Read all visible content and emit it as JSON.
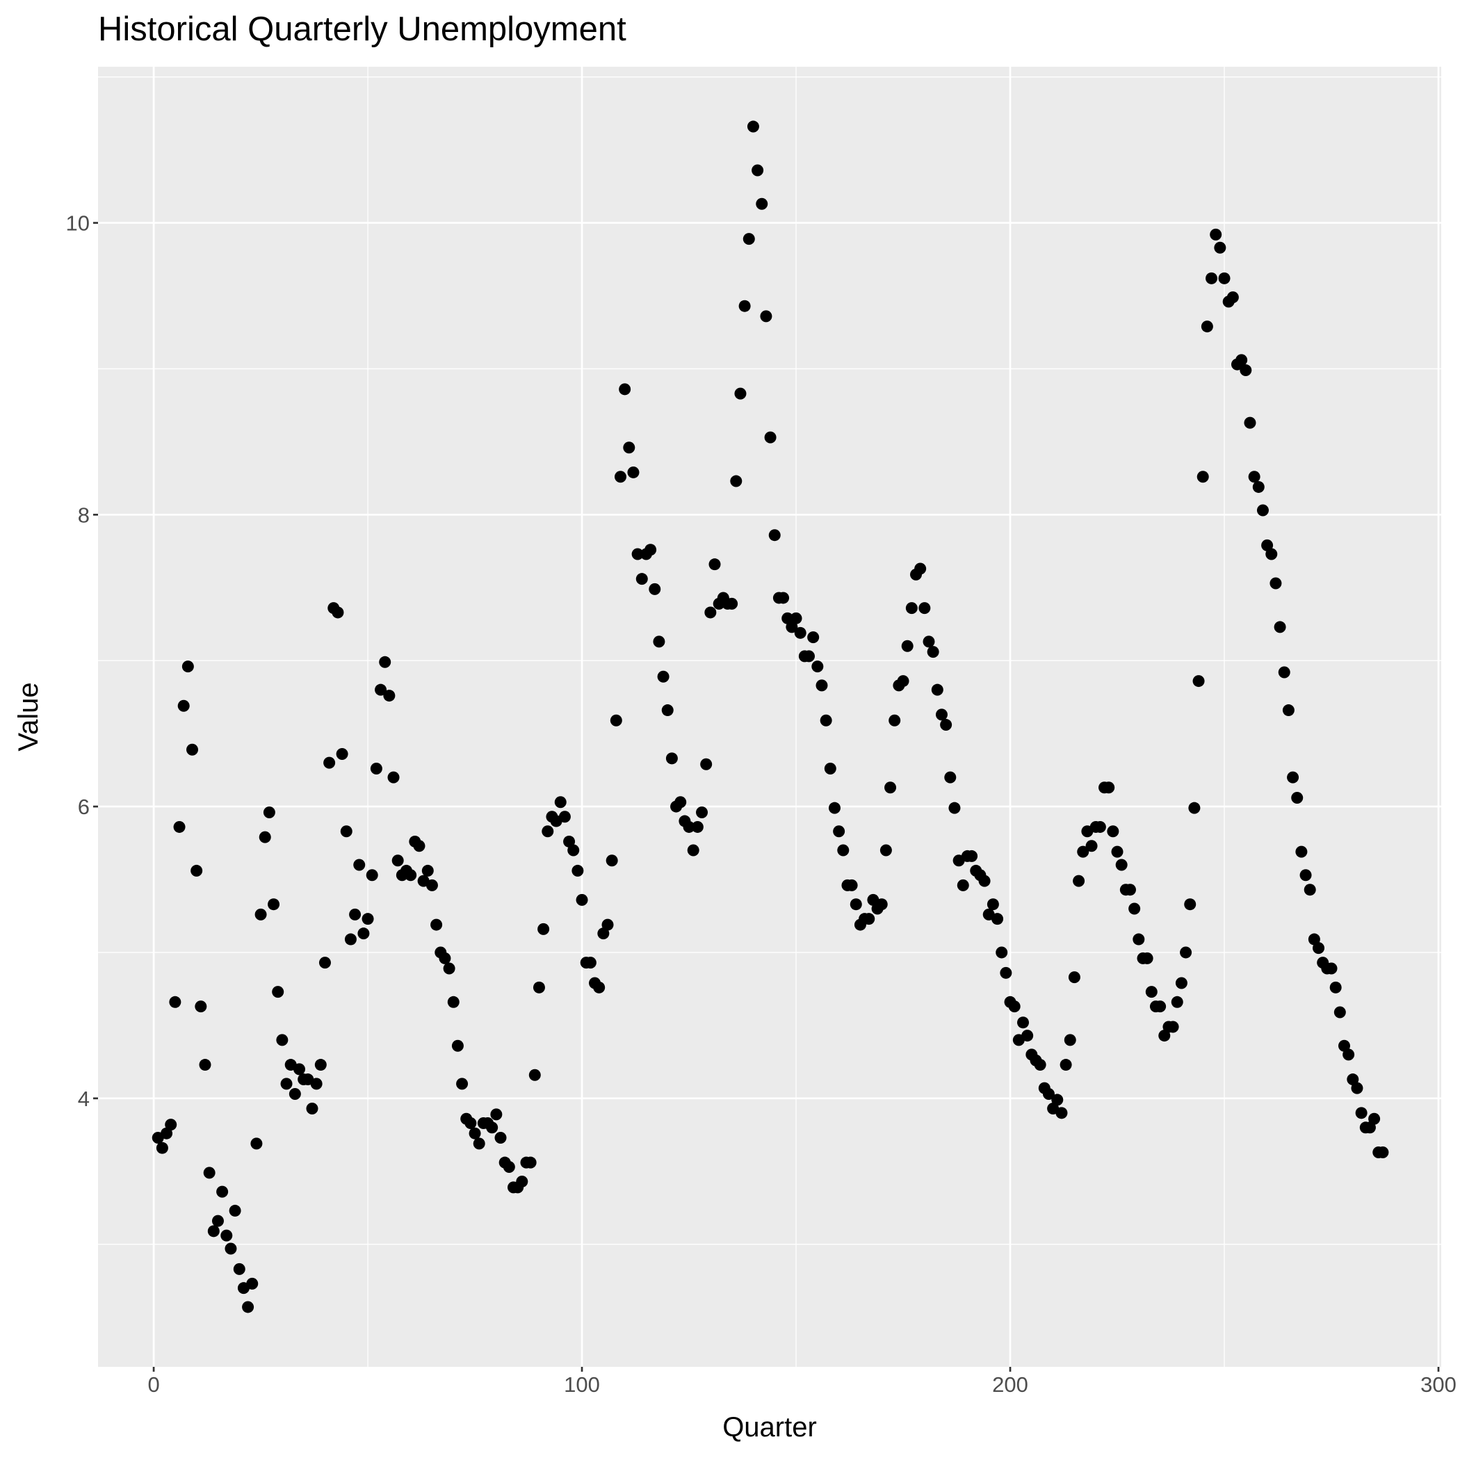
{
  "chart_data": {
    "type": "scatter",
    "title": "Historical Quarterly Unemployment",
    "x_label": "Quarter",
    "y_label": "Value",
    "color": "#000000",
    "x": [
      1,
      2,
      3,
      4,
      5,
      6,
      7,
      8,
      9,
      10,
      11,
      12,
      13,
      14,
      15,
      16,
      17,
      18,
      19,
      20,
      21,
      22,
      23,
      24,
      25,
      26,
      27,
      28,
      29,
      30,
      31,
      32,
      33,
      34,
      35,
      36,
      37,
      38,
      39,
      40,
      41,
      42,
      43,
      44,
      45,
      46,
      47,
      48,
      49,
      50,
      51,
      52,
      53,
      54,
      55,
      56,
      57,
      58,
      59,
      60,
      61,
      62,
      63,
      64,
      65,
      66,
      67,
      68,
      69,
      70,
      71,
      72,
      73,
      74,
      75,
      76,
      77,
      78,
      79,
      80,
      81,
      82,
      83,
      84,
      85,
      86,
      87,
      88,
      89,
      90,
      91,
      92,
      93,
      94,
      95,
      96,
      97,
      98,
      99,
      100,
      101,
      102,
      103,
      104,
      105,
      106,
      107,
      108,
      109,
      110,
      111,
      112,
      113,
      114,
      115,
      116,
      117,
      118,
      119,
      120,
      121,
      122,
      123,
      124,
      125,
      126,
      127,
      128,
      129,
      130,
      131,
      132,
      133,
      134,
      135,
      136,
      137,
      138,
      139,
      140,
      141,
      142,
      143,
      144,
      145,
      146,
      147,
      148,
      149,
      150,
      151,
      152,
      153,
      154,
      155,
      156,
      157,
      158,
      159,
      160,
      161,
      162,
      163,
      164,
      165,
      166,
      167,
      168,
      169,
      170,
      171,
      172,
      173,
      174,
      175,
      176,
      177,
      178,
      179,
      180,
      181,
      182,
      183,
      184,
      185,
      186,
      187,
      188,
      189,
      190,
      191,
      192,
      193,
      194,
      195,
      196,
      197,
      198,
      199,
      200,
      201,
      202,
      203,
      204,
      205,
      206,
      207,
      208,
      209,
      210,
      211,
      212,
      213,
      214,
      215,
      216,
      217,
      218,
      219,
      220,
      221,
      222,
      223,
      224,
      225,
      226,
      227,
      228,
      229,
      230,
      231,
      232,
      233,
      234,
      235,
      236,
      237,
      238,
      239,
      240,
      241,
      242,
      243,
      244,
      245,
      246,
      247,
      248,
      249,
      250,
      251,
      252,
      253,
      254,
      255,
      256,
      257,
      258,
      259,
      260,
      261,
      262,
      263,
      264,
      265,
      266,
      267,
      268,
      269,
      270,
      271,
      272,
      273,
      274,
      275,
      276,
      277,
      278,
      279,
      280,
      281,
      282,
      283,
      284,
      285,
      286,
      287
    ],
    "values": [
      3.73,
      3.66,
      3.76,
      3.82,
      4.66,
      5.86,
      6.69,
      6.96,
      6.39,
      5.56,
      4.63,
      4.23,
      3.49,
      3.09,
      3.16,
      3.36,
      3.06,
      2.97,
      3.23,
      2.83,
      2.7,
      2.57,
      2.73,
      3.69,
      5.26,
      5.79,
      5.96,
      5.33,
      4.73,
      4.4,
      4.1,
      4.23,
      4.03,
      4.2,
      4.13,
      4.13,
      3.93,
      4.1,
      4.23,
      4.93,
      6.3,
      7.36,
      7.33,
      6.36,
      5.83,
      5.09,
      5.26,
      5.6,
      5.13,
      5.23,
      5.53,
      6.26,
      6.8,
      6.99,
      6.76,
      6.2,
      5.63,
      5.53,
      5.56,
      5.53,
      5.76,
      5.73,
      5.49,
      5.56,
      5.46,
      5.19,
      5.0,
      4.96,
      4.89,
      4.66,
      4.36,
      4.1,
      3.86,
      3.83,
      3.76,
      3.69,
      3.83,
      3.83,
      3.8,
      3.89,
      3.73,
      3.56,
      3.53,
      3.39,
      3.39,
      3.43,
      3.56,
      3.56,
      4.16,
      4.76,
      5.16,
      5.83,
      5.93,
      5.9,
      6.03,
      5.93,
      5.76,
      5.7,
      5.56,
      5.36,
      4.93,
      4.93,
      4.79,
      4.76,
      5.13,
      5.19,
      5.63,
      6.59,
      8.26,
      8.86,
      8.46,
      8.29,
      7.73,
      7.56,
      7.73,
      7.76,
      7.49,
      7.13,
      6.89,
      6.66,
      6.33,
      6.0,
      6.03,
      5.9,
      5.86,
      5.7,
      5.86,
      5.96,
      6.29,
      7.33,
      7.66,
      7.39,
      7.43,
      7.39,
      7.39,
      8.23,
      8.83,
      9.43,
      9.89,
      10.66,
      10.36,
      10.13,
      9.36,
      8.53,
      7.86,
      7.43,
      7.43,
      7.29,
      7.23,
      7.29,
      7.19,
      7.03,
      7.03,
      7.16,
      6.96,
      6.83,
      6.59,
      6.26,
      5.99,
      5.83,
      5.7,
      5.46,
      5.46,
      5.33,
      5.19,
      5.23,
      5.23,
      5.36,
      5.3,
      5.33,
      5.7,
      6.13,
      6.59,
      6.83,
      6.86,
      7.1,
      7.36,
      7.59,
      7.63,
      7.36,
      7.13,
      7.06,
      6.8,
      6.63,
      6.56,
      6.2,
      5.99,
      5.63,
      5.46,
      5.66,
      5.66,
      5.56,
      5.53,
      5.49,
      5.26,
      5.33,
      5.23,
      5.0,
      4.86,
      4.66,
      4.63,
      4.4,
      4.52,
      4.43,
      4.3,
      4.26,
      4.23,
      4.07,
      4.03,
      3.93,
      3.99,
      3.9,
      4.23,
      4.4,
      4.83,
      5.49,
      5.69,
      5.83,
      5.73,
      5.86,
      5.86,
      6.13,
      6.13,
      5.83,
      5.69,
      5.6,
      5.43,
      5.43,
      5.3,
      5.09,
      4.96,
      4.96,
      4.73,
      4.63,
      4.63,
      4.43,
      4.49,
      4.49,
      4.66,
      4.79,
      5.0,
      5.33,
      5.99,
      6.86,
      8.26,
      9.29,
      9.62,
      9.92,
      9.83,
      9.62,
      9.46,
      9.49,
      9.03,
      9.06,
      8.99,
      8.63,
      8.26,
      8.19,
      8.03,
      7.79,
      7.73,
      7.53,
      7.23,
      6.92,
      6.66,
      6.2,
      6.06,
      5.69,
      5.53,
      5.43,
      5.09,
      5.03,
      4.93,
      4.89,
      4.89,
      4.76,
      4.59,
      4.36,
      4.3,
      4.13,
      4.07,
      3.9,
      3.8,
      3.8,
      3.86,
      3.63,
      3.63
    ],
    "xlim": [
      -13.0,
      300.65
    ],
    "ylim": [
      2.16,
      11.07
    ],
    "xticks": [
      0,
      100,
      200,
      300
    ],
    "yticks": [
      4,
      6,
      8,
      10
    ],
    "x_minor_gridlines": [
      50,
      150,
      250
    ],
    "y_minor_gridlines": [
      3,
      5,
      7,
      9,
      11
    ],
    "grid": true
  }
}
